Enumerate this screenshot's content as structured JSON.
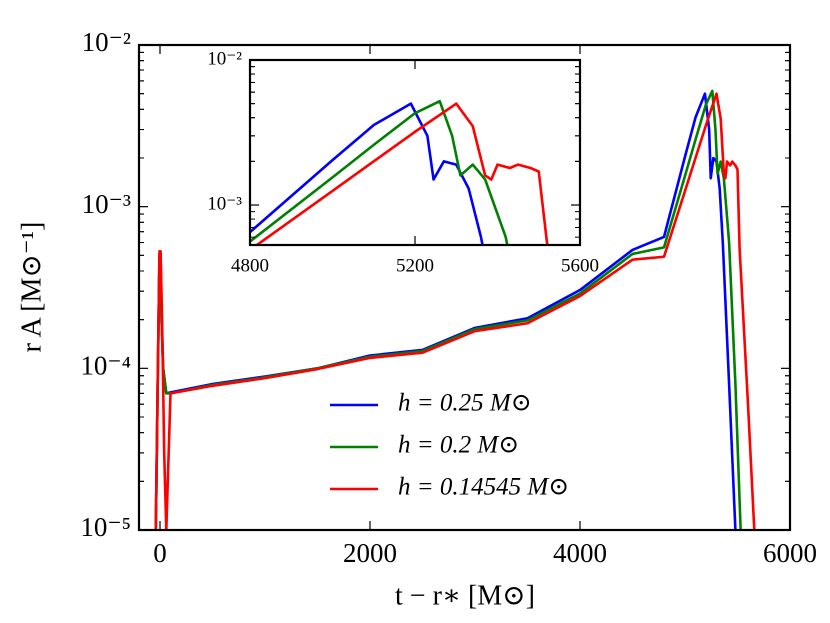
{
  "chart_data": {
    "type": "line",
    "yscale": "log",
    "xlabel": "t − r∗ [M⊙]",
    "ylabel": "r A [M⊙⁻¹]",
    "xlim": [
      -200,
      6000
    ],
    "xticks": [
      0,
      2000,
      4000,
      6000
    ],
    "ylim": [
      1e-05,
      0.01
    ],
    "yticks": [
      {
        "value": 1e-05,
        "label": "10⁻⁵"
      },
      {
        "value": 0.0001,
        "label": "10⁻⁴"
      },
      {
        "value": 0.001,
        "label": "10⁻³"
      },
      {
        "value": 0.01,
        "label": "10⁻²"
      }
    ],
    "legend": "lower center",
    "series": [
      {
        "name": "h = 0.25 M⊙",
        "color": "#0000ff",
        "x": [
          -40,
          -20,
          -5,
          5,
          15,
          30,
          60,
          100,
          500,
          1000,
          1500,
          2000,
          2500,
          3000,
          3500,
          4000,
          4500,
          4800,
          5000,
          5100,
          5190,
          5230,
          5245,
          5270,
          5300,
          5330,
          5360,
          5420,
          5480
        ],
        "values": [
          1e-05,
          0.0001,
          0.0005,
          0.00052,
          0.0002,
          0.0001,
          7e-05,
          7.1e-05,
          8e-05,
          8.9e-05,
          0.0001,
          0.00012,
          0.00013,
          0.000178,
          0.000204,
          0.000305,
          0.00054,
          0.00065,
          0.00204,
          0.00356,
          0.005,
          0.003,
          0.0015,
          0.002,
          0.0019,
          0.0013,
          0.0006,
          8e-05,
          1e-05
        ]
      },
      {
        "name": "h = 0.2 M⊙",
        "color": "#008000",
        "x": [
          -40,
          -20,
          -5,
          5,
          15,
          30,
          60,
          100,
          500,
          1000,
          1500,
          2000,
          2500,
          3000,
          3500,
          4000,
          4500,
          4800,
          5000,
          5100,
          5200,
          5260,
          5290,
          5310,
          5340,
          5370,
          5420,
          5480,
          5530
        ],
        "values": [
          1e-05,
          0.0001,
          0.0005,
          0.00052,
          0.0002,
          0.0001,
          7e-05,
          7e-05,
          7.9e-05,
          8.8e-05,
          0.0001,
          0.000118,
          0.000128,
          0.000175,
          0.000198,
          0.00029,
          0.00051,
          0.00056,
          0.00155,
          0.0026,
          0.0043,
          0.0052,
          0.003,
          0.0016,
          0.0019,
          0.0015,
          0.0006,
          8e-05,
          1e-05
        ]
      },
      {
        "name": "h = 0.14545 M⊙",
        "color": "#ff0000",
        "x": [
          -40,
          -20,
          -5,
          5,
          20,
          40,
          60,
          100,
          500,
          1000,
          1500,
          2000,
          2500,
          3000,
          3500,
          4000,
          4500,
          4800,
          5000,
          5100,
          5200,
          5300,
          5340,
          5370,
          5385,
          5400,
          5430,
          5450,
          5480,
          5500,
          5520,
          5600,
          5660
        ],
        "values": [
          1e-05,
          0.0001,
          0.00053,
          0.00053,
          0.0002,
          3e-05,
          1e-05,
          7e-05,
          7.8e-05,
          8.7e-05,
          9.9e-05,
          0.000116,
          0.000125,
          0.00017,
          0.00019,
          0.00028,
          0.00047,
          0.00049,
          0.00125,
          0.002,
          0.0032,
          0.005,
          0.0035,
          0.0016,
          0.0015,
          0.0019,
          0.0018,
          0.0019,
          0.0018,
          0.0017,
          0.00055,
          6e-05,
          1e-05
        ]
      }
    ],
    "inset": {
      "xlim": [
        4800,
        5600
      ],
      "xticks": [
        4800,
        5200,
        5600
      ],
      "ylim": [
        0.00053,
        0.01
      ],
      "yticks": [
        {
          "value": 0.001,
          "label": "10⁻³"
        },
        {
          "value": 0.01,
          "label": "10⁻²"
        }
      ]
    }
  }
}
